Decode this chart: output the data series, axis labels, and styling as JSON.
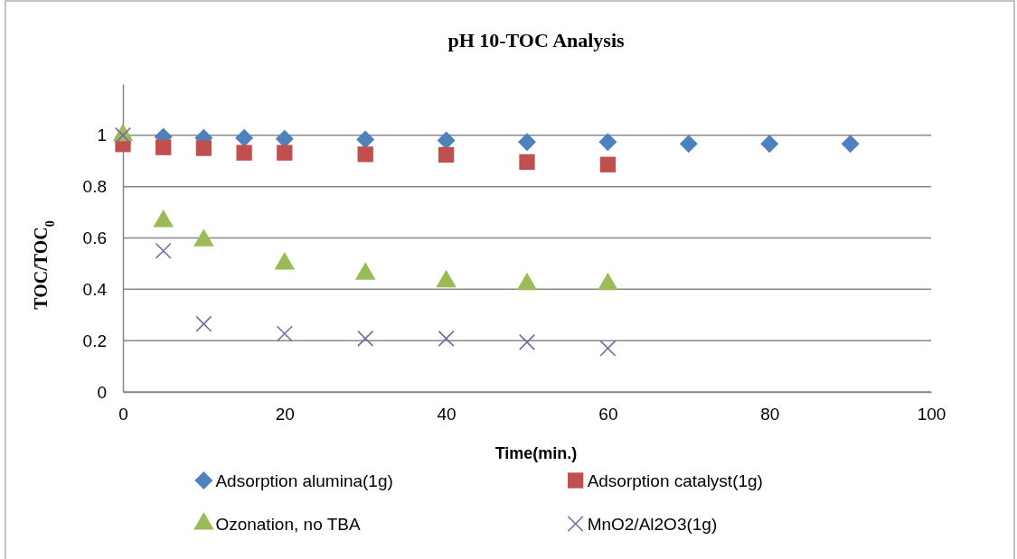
{
  "chart_data": {
    "type": "scatter",
    "title": "pH 10-TOC Analysis",
    "xlabel": "Time(min.)",
    "ylabel": "TOC/TOC$_{0}$",
    "xlim": [
      0,
      100
    ],
    "xticks": [
      0,
      20,
      40,
      60,
      80,
      100
    ],
    "ylim": [
      0,
      1.2
    ],
    "yticks": [
      0,
      0.2,
      0.4,
      0.6,
      0.8,
      1
    ],
    "grid": "y",
    "legend": "bottom",
    "series": [
      {
        "name": "Adsorption alumina(1g)",
        "color": "#4f81bd",
        "marker": "diamond",
        "x": [
          5,
          10,
          15,
          20,
          30,
          40,
          50,
          60,
          70,
          80,
          90
        ],
        "values": [
          0.994,
          0.99,
          0.99,
          0.986,
          0.984,
          0.98,
          0.974,
          0.974,
          0.967,
          0.967,
          0.967
        ]
      },
      {
        "name": "Adsorption catalyst(1g)",
        "color": "#c0504d",
        "marker": "square",
        "x": [
          0,
          5,
          10,
          15,
          20,
          30,
          40,
          50,
          60
        ],
        "values": [
          0.965,
          0.953,
          0.95,
          0.932,
          0.932,
          0.926,
          0.924,
          0.896,
          0.886
        ]
      },
      {
        "name": "Ozonation, no TBA",
        "color": "#9bbb59",
        "marker": "triangle",
        "x": [
          0,
          5,
          10,
          20,
          30,
          40,
          50,
          60
        ],
        "values": [
          1,
          0.665,
          0.59,
          0.5,
          0.46,
          0.43,
          0.42,
          0.42
        ]
      },
      {
        "name": "MnO2/Al2O3(1g)",
        "color": "#8064a2",
        "marker": "cross",
        "x": [
          0,
          5,
          10,
          20,
          30,
          40,
          50,
          60
        ],
        "values": [
          1,
          0.55,
          0.265,
          0.227,
          0.208,
          0.208,
          0.194,
          0.17
        ]
      }
    ]
  }
}
